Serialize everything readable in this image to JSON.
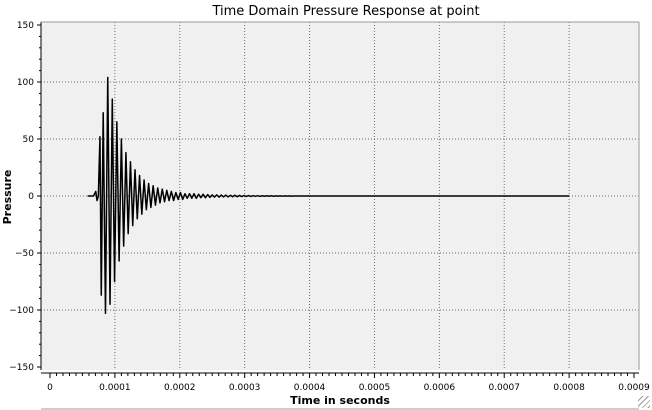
{
  "chart_data": {
    "type": "line",
    "title": "Time Domain Pressure Response at point",
    "xlabel": "Time in seconds",
    "ylabel": "Pressure",
    "xlim": [
      0,
      0.0009
    ],
    "ylim": [
      -150,
      150
    ],
    "grid": true,
    "colors": {
      "plot_background": "#f0f0f0",
      "line": "#000000",
      "grid": "#6e6e6e"
    },
    "x_ticks": [
      {
        "value": 0,
        "label": "0"
      },
      {
        "value": 0.0001,
        "label": "0.0001"
      },
      {
        "value": 0.0002,
        "label": "0.0002"
      },
      {
        "value": 0.0003,
        "label": "0.0003"
      },
      {
        "value": 0.0004,
        "label": "0.0004"
      },
      {
        "value": 0.0005,
        "label": "0.0005"
      },
      {
        "value": 0.0006,
        "label": "0.0006"
      },
      {
        "value": 0.0007,
        "label": "0.0007"
      },
      {
        "value": 0.0008,
        "label": "0.0008"
      },
      {
        "value": 0.0009,
        "label": "0.0009"
      }
    ],
    "y_ticks": [
      {
        "value": 150,
        "label": "150"
      },
      {
        "value": 100,
        "label": "100"
      },
      {
        "value": 50,
        "label": "50"
      },
      {
        "value": 0,
        "label": "0"
      },
      {
        "value": -50,
        "label": "−50"
      },
      {
        "value": -100,
        "label": "−100"
      },
      {
        "value": -150,
        "label": "−150"
      }
    ],
    "series": [
      {
        "x": [
          5.8e-05,
          6.7e-05,
          7.05e-05,
          7.25e-05,
          7.45e-05,
          7.7e-05,
          7.9e-05,
          8.2e-05,
          8.55e-05,
          8.9e-05,
          9.25e-05,
          9.6e-05,
          9.95e-05,
          0.000103,
          0.0001065,
          0.00011,
          0.0001135,
          0.000117,
          0.0001205,
          0.000124,
          0.0001275,
          0.000131,
          0.0001345,
          0.000138,
          0.0001415,
          0.000145,
          0.0001485,
          0.000152,
          0.0001555,
          0.000159,
          0.0001625,
          0.000166,
          0.0001695,
          0.000173,
          0.0001765,
          0.00018,
          0.0001835,
          0.000187,
          0.0001905,
          0.000194,
          0.0001975,
          0.000201,
          0.0002045,
          0.000208,
          0.0002115,
          0.000215,
          0.0002185,
          0.000222,
          0.0002255,
          0.000229,
          0.0002325,
          0.000236,
          0.0002395,
          0.000243,
          0.0002465,
          0.00025,
          0.0002535,
          0.000257,
          0.0002605,
          0.000264,
          0.0002675,
          0.000271,
          0.0002745,
          0.000278,
          0.0002815,
          0.000285,
          0.0002885,
          0.000292,
          0.0002955,
          0.000299,
          0.0003025,
          0.000306,
          0.0003095,
          0.000313,
          0.0003165,
          0.00032,
          0.0003235,
          0.000327,
          0.0003305,
          0.000334,
          0.0003375,
          0.000341,
          0.0003445,
          0.000348,
          0.0003515,
          0.000355,
          0.0003585,
          0.000362,
          0.0003655,
          0.000369,
          0.0003725,
          0.000376,
          0.0003795,
          0.000383,
          0.0003865,
          0.00039,
          0.0008
        ],
        "y": [
          0,
          0,
          4,
          -4,
          0,
          52,
          -87,
          73,
          -103,
          104,
          -95,
          85,
          -75,
          65,
          -57,
          50,
          -44,
          38,
          -33,
          30,
          -26,
          23,
          -20,
          18,
          -16,
          14,
          -12,
          11,
          -10,
          9,
          -8,
          7,
          -6,
          6,
          -5,
          5,
          -4,
          4,
          -4,
          3,
          -3,
          3,
          -3,
          2,
          -2,
          2,
          -2,
          2,
          -2,
          1.5,
          -1.5,
          1.5,
          -1.5,
          1.2,
          -1.2,
          1,
          -1,
          1,
          -1,
          0.8,
          -0.8,
          0.8,
          -0.8,
          0.6,
          -0.6,
          0.6,
          -0.6,
          0.5,
          -0.5,
          0.4,
          -0.4,
          0.4,
          -0.4,
          0.3,
          -0.3,
          0.3,
          -0.3,
          0.2,
          -0.2,
          0.2,
          -0.2,
          0.2,
          -0.2,
          0.1,
          -0.1,
          0.1,
          -0.1,
          0.1,
          -0.1,
          0.1,
          -0.1,
          0.05,
          -0.05,
          0,
          0,
          0,
          0
        ]
      }
    ]
  }
}
